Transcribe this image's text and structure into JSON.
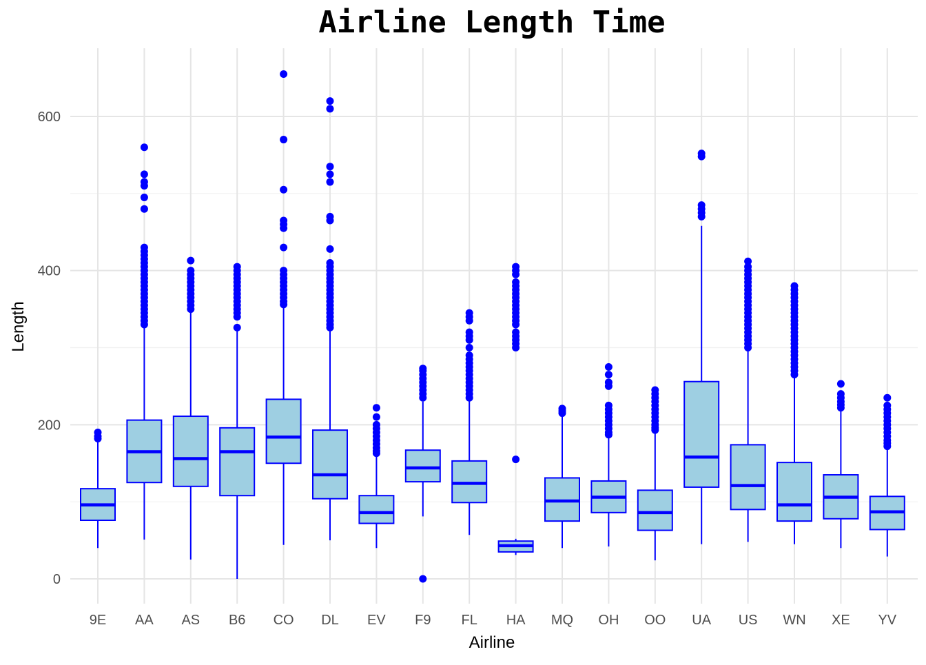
{
  "colors": {
    "box_fill": "#9ecfe2",
    "box_stroke": "#0000ff",
    "outlier": "#0000ff",
    "grid_major": "#e5e5e5",
    "grid_minor": "#f0f0f0",
    "tick_text": "#4d4d4d"
  },
  "chart_data": {
    "type": "boxplot",
    "title": "Airline Length Time",
    "xlabel": "Airline",
    "ylabel": "Length",
    "ylim": [
      -25,
      685
    ],
    "yticks": [
      0,
      200,
      400,
      600
    ],
    "grid": true,
    "legend": "none",
    "categories": [
      "9E",
      "AA",
      "AS",
      "B6",
      "CO",
      "DL",
      "EV",
      "F9",
      "FL",
      "HA",
      "MQ",
      "OH",
      "OO",
      "UA",
      "US",
      "WN",
      "XE",
      "YV"
    ],
    "boxes": [
      {
        "label": "9E",
        "whisker_low": 40,
        "q1": 76,
        "median": 96,
        "q3": 117,
        "whisker_high": 178,
        "outliers": [
          182,
          185,
          190
        ]
      },
      {
        "label": "AA",
        "whisker_low": 51,
        "q1": 125,
        "median": 165,
        "q3": 206,
        "whisker_high": 328,
        "outliers": [
          330,
          335,
          340,
          345,
          350,
          355,
          360,
          365,
          370,
          375,
          380,
          385,
          390,
          395,
          400,
          405,
          410,
          415,
          420,
          425,
          430,
          480,
          495,
          510,
          515,
          525,
          560
        ]
      },
      {
        "label": "AS",
        "whisker_low": 25,
        "q1": 120,
        "median": 156,
        "q3": 211,
        "whisker_high": 347,
        "outliers": [
          350,
          355,
          360,
          365,
          370,
          375,
          380,
          385,
          390,
          395,
          400,
          413
        ]
      },
      {
        "label": "B6",
        "whisker_low": 0,
        "q1": 108,
        "median": 165,
        "q3": 196,
        "whisker_high": 322,
        "outliers": [
          326,
          340,
          345,
          350,
          355,
          360,
          365,
          370,
          375,
          380,
          385,
          390,
          395,
          400,
          405
        ]
      },
      {
        "label": "CO",
        "whisker_low": 44,
        "q1": 150,
        "median": 184,
        "q3": 233,
        "whisker_high": 352,
        "outliers": [
          356,
          360,
          365,
          370,
          375,
          380,
          385,
          390,
          395,
          400,
          430,
          455,
          460,
          465,
          505,
          570,
          655
        ]
      },
      {
        "label": "DL",
        "whisker_low": 50,
        "q1": 104,
        "median": 135,
        "q3": 193,
        "whisker_high": 322,
        "outliers": [
          326,
          330,
          335,
          340,
          345,
          350,
          355,
          360,
          365,
          370,
          375,
          380,
          385,
          390,
          395,
          400,
          405,
          410,
          428,
          465,
          470,
          515,
          525,
          535,
          610,
          620
        ]
      },
      {
        "label": "EV",
        "whisker_low": 40,
        "q1": 72,
        "median": 86,
        "q3": 108,
        "whisker_high": 160,
        "outliers": [
          163,
          166,
          170,
          175,
          180,
          185,
          190,
          195,
          200,
          210,
          222
        ]
      },
      {
        "label": "F9",
        "whisker_low": 81,
        "q1": 126,
        "median": 144,
        "q3": 167,
        "whisker_high": 230,
        "outliers": [
          0,
          235,
          240,
          245,
          250,
          255,
          260,
          265,
          270,
          273
        ]
      },
      {
        "label": "FL",
        "whisker_low": 57,
        "q1": 99,
        "median": 124,
        "q3": 153,
        "whisker_high": 232,
        "outliers": [
          235,
          240,
          245,
          250,
          255,
          260,
          265,
          270,
          275,
          280,
          285,
          290,
          300,
          310,
          315,
          320,
          335,
          340,
          345
        ]
      },
      {
        "label": "HA",
        "whisker_low": 31,
        "q1": 35,
        "median": 43,
        "q3": 49,
        "whisker_high": 52,
        "outliers": [
          155,
          300,
          305,
          310,
          315,
          320,
          330,
          335,
          340,
          345,
          350,
          355,
          360,
          365,
          370,
          375,
          380,
          385,
          395,
          400,
          405
        ]
      },
      {
        "label": "MQ",
        "whisker_low": 40,
        "q1": 75,
        "median": 101,
        "q3": 131,
        "whisker_high": 212,
        "outliers": [
          215,
          218,
          221
        ]
      },
      {
        "label": "OH",
        "whisker_low": 42,
        "q1": 86,
        "median": 106,
        "q3": 127,
        "whisker_high": 184,
        "outliers": [
          187,
          190,
          195,
          200,
          205,
          210,
          215,
          220,
          225,
          250,
          255,
          265,
          275
        ]
      },
      {
        "label": "OO",
        "whisker_low": 24,
        "q1": 63,
        "median": 86,
        "q3": 115,
        "whisker_high": 190,
        "outliers": [
          193,
          196,
          200,
          205,
          210,
          215,
          220,
          225,
          230,
          235,
          240,
          245
        ]
      },
      {
        "label": "UA",
        "whisker_low": 45,
        "q1": 119,
        "median": 158,
        "q3": 256,
        "whisker_high": 458,
        "outliers": [
          470,
          475,
          480,
          485,
          548,
          552
        ]
      },
      {
        "label": "US",
        "whisker_low": 48,
        "q1": 90,
        "median": 121,
        "q3": 174,
        "whisker_high": 297,
        "outliers": [
          300,
          305,
          310,
          315,
          320,
          325,
          330,
          335,
          340,
          345,
          350,
          355,
          360,
          365,
          370,
          375,
          380,
          385,
          390,
          395,
          400,
          405,
          412
        ]
      },
      {
        "label": "WN",
        "whisker_low": 45,
        "q1": 75,
        "median": 96,
        "q3": 151,
        "whisker_high": 262,
        "outliers": [
          265,
          270,
          275,
          280,
          285,
          290,
          295,
          300,
          305,
          310,
          315,
          320,
          325,
          330,
          335,
          340,
          345,
          350,
          355,
          360,
          365,
          370,
          375,
          380
        ]
      },
      {
        "label": "XE",
        "whisker_low": 40,
        "q1": 78,
        "median": 106,
        "q3": 135,
        "whisker_high": 218,
        "outliers": [
          222,
          226,
          230,
          235,
          240,
          253
        ]
      },
      {
        "label": "YV",
        "whisker_low": 29,
        "q1": 64,
        "median": 87,
        "q3": 107,
        "whisker_high": 168,
        "outliers": [
          172,
          176,
          180,
          185,
          190,
          195,
          200,
          205,
          210,
          215,
          220,
          225,
          235
        ]
      }
    ]
  }
}
